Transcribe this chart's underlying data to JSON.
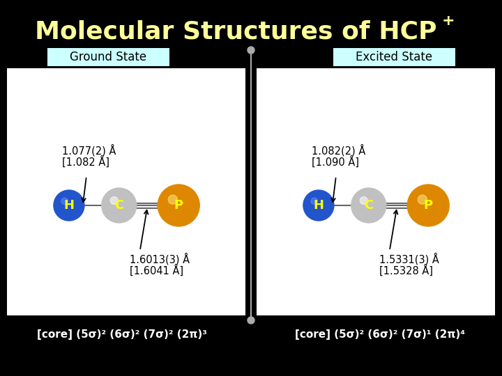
{
  "title": "Molecular Structures of HCP",
  "title_plus": "+",
  "title_color": "#ffff99",
  "bg_color": "#000000",
  "divider_color": "#aaaaaa",
  "panel_bg": "#ffffff",
  "label_bg": "#ccffff",
  "ground_state_label": "Ground State",
  "excited_state_label": "Excited State",
  "ground_bond1_line1": "1.077(2) Å",
  "ground_bond1_line2": "[1.082 Å]",
  "ground_bond2_line1": "1.6013(3) Å",
  "ground_bond2_line2": "[1.6041 Å]",
  "excited_bond1_line1": "1.082(2) Å",
  "excited_bond1_line2": "[1.090 Å]",
  "excited_bond2_line1": "1.5331(3) Å",
  "excited_bond2_line2": "[1.5328 Å]",
  "ground_config": "[core] (5σ)² (6σ)² (7σ)² (2π)³",
  "excited_config": "[core] (5σ)² (6σ)² (7σ)¹ (2π)⁴",
  "H_color": "#2255cc",
  "C_color": "#c0c0c0",
  "P_color": "#dd8800",
  "atom_label_color": "#ffff00",
  "bond_color": "#666666",
  "text_color": "#000000"
}
